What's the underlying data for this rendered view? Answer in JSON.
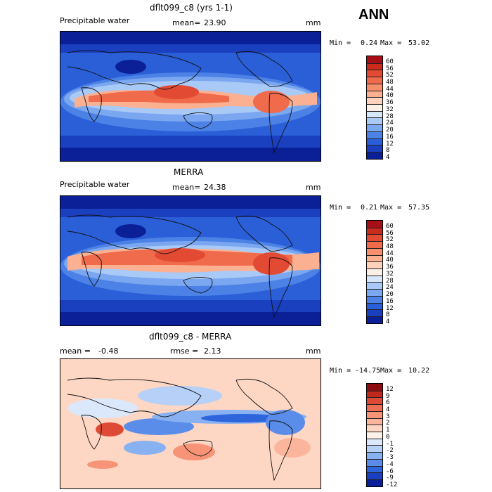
{
  "header": {
    "season": "ANN"
  },
  "chart_data": [
    {
      "type": "heatmap",
      "title": "dflt099_c8 (yrs 1-1)",
      "field": "Precipitable water",
      "stat_label": "mean=",
      "stat_value": "23.90",
      "units": "mm",
      "min_label": "Min =",
      "min": "0.24",
      "max_label": "Max =",
      "max": "53.02",
      "levels": [
        "60",
        "56",
        "52",
        "48",
        "44",
        "40",
        "36",
        "32",
        "28",
        "24",
        "20",
        "16",
        "12",
        "8",
        "4"
      ],
      "colors": [
        "#a50f15",
        "#cb2b1c",
        "#e34a33",
        "#f06a4c",
        "#f78e6c",
        "#fbb091",
        "#fdd2bd",
        "#fbf0e8",
        "#d6e6fb",
        "#a9c9f7",
        "#7ba7f0",
        "#4c82e6",
        "#2a5fd8",
        "#1a3fbf",
        "#0b1f96"
      ]
    },
    {
      "type": "heatmap",
      "title": "MERRA",
      "field": "Precipitable water",
      "stat_label": "mean=",
      "stat_value": "24.38",
      "units": "mm",
      "min_label": "Min =",
      "min": "0.21",
      "max_label": "Max =",
      "max": "57.35",
      "levels": [
        "60",
        "56",
        "52",
        "48",
        "44",
        "40",
        "36",
        "32",
        "28",
        "24",
        "20",
        "16",
        "12",
        "8",
        "4"
      ],
      "colors": [
        "#a50f15",
        "#cb2b1c",
        "#e34a33",
        "#f06a4c",
        "#f78e6c",
        "#fbb091",
        "#fdd2bd",
        "#fbf0e8",
        "#d6e6fb",
        "#a9c9f7",
        "#7ba7f0",
        "#4c82e6",
        "#2a5fd8",
        "#1a3fbf",
        "#0b1f96"
      ]
    },
    {
      "type": "heatmap",
      "title": "dflt099_c8 - MERRA",
      "mean_label": "mean =",
      "mean_value": "-0.48",
      "rmse_label": "rmse =",
      "rmse_value": "2.13",
      "units": "mm",
      "min_label": "Min =",
      "min": "-14.75",
      "max_label": "Max =",
      "max": "10.22",
      "levels": [
        "12",
        "9",
        "6",
        "4",
        "3",
        "2",
        "1",
        "0",
        "-1",
        "-2",
        "-3",
        "-4",
        "-6",
        "-9",
        "-12"
      ],
      "colors": [
        "#8b0d12",
        "#c0281c",
        "#dd4a35",
        "#ee6e55",
        "#f79377",
        "#fbb59c",
        "#fdd6c4",
        "#fdf0e7",
        "#dbe8fb",
        "#b6d0f7",
        "#88b1f1",
        "#5a8de9",
        "#2e64dc",
        "#1a3fc2",
        "#0b1f99"
      ]
    }
  ]
}
